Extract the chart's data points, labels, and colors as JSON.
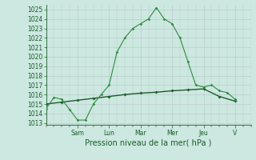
{
  "xlabel": "Pression niveau de la mer( hPa )",
  "bg_color": "#cce8e0",
  "grid_color": "#bbcccc",
  "line_color_dark": "#1a5c2a",
  "line_color_light": "#2e8b40",
  "ylim": [
    1012.8,
    1025.5
  ],
  "yticks": [
    1013,
    1014,
    1015,
    1016,
    1017,
    1018,
    1019,
    1020,
    1021,
    1022,
    1023,
    1024,
    1025
  ],
  "day_labels": [
    "Sam",
    "Lun",
    "Mar",
    "Mer",
    "Jeu",
    "V"
  ],
  "day_positions": [
    24,
    48,
    72,
    96,
    120,
    144
  ],
  "xlim": [
    0,
    156
  ],
  "x_main": [
    0,
    6,
    12,
    18,
    24,
    30,
    36,
    42,
    48,
    54,
    60,
    66,
    72,
    78,
    84,
    90,
    96,
    102,
    108,
    114,
    120,
    126,
    132,
    138,
    144
  ],
  "y_main": [
    1014.5,
    1015.7,
    1015.5,
    1014.4,
    1013.3,
    1013.3,
    1015.0,
    1016.0,
    1017.0,
    1020.5,
    1022.0,
    1023.0,
    1023.5,
    1024.0,
    1025.2,
    1024.0,
    1023.5,
    1022.0,
    1019.5,
    1017.0,
    1016.8,
    1017.0,
    1016.4,
    1016.2,
    1015.5
  ],
  "x_smooth": [
    0,
    12,
    24,
    36,
    48,
    60,
    72,
    84,
    96,
    108,
    120,
    132,
    144
  ],
  "y_smooth": [
    1015.0,
    1015.2,
    1015.4,
    1015.6,
    1015.8,
    1016.0,
    1016.15,
    1016.25,
    1016.4,
    1016.5,
    1016.6,
    1015.8,
    1015.3
  ],
  "tick_label_color": "#1a5c2a",
  "xlabel_color": "#1a5c2a",
  "tick_label_size": 5.5,
  "xlabel_size": 7.0
}
